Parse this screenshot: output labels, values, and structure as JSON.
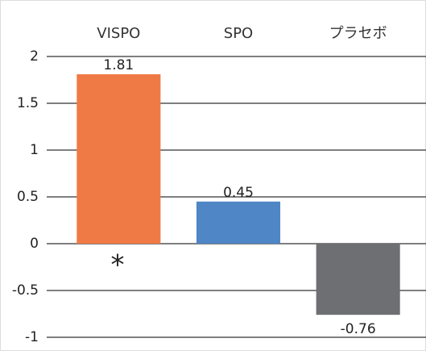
{
  "chart_data": {
    "type": "bar",
    "categories": [
      "VISPO",
      "SPO",
      "プラセボ"
    ],
    "values": [
      1.81,
      0.45,
      -0.76
    ],
    "colors": [
      "#f07a45",
      "#4f86c5",
      "#6e6f72"
    ],
    "ylim": [
      -1,
      2
    ],
    "yticks": [
      -1,
      -0.5,
      0,
      0.5,
      1,
      1.5,
      2
    ],
    "grid": true,
    "annotation": "*"
  }
}
